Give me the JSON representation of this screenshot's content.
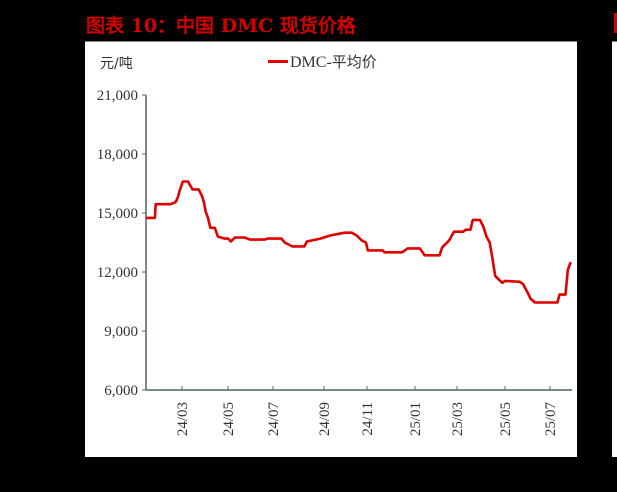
{
  "header": {
    "title": "图表 10：中国 DMC 现货价格"
  },
  "chart_data": {
    "type": "line",
    "title": "图表 10：中国 DMC 现货价格",
    "xlabel": "",
    "ylabel": "元/吨",
    "ylim": [
      6000,
      21000
    ],
    "yticks": [
      6000,
      9000,
      12000,
      15000,
      18000,
      21000
    ],
    "ytick_labels": [
      "6,000",
      "9,000",
      "12,000",
      "15,000",
      "18,000",
      "21,000"
    ],
    "xticks": [
      "24/03",
      "24/05",
      "24/07",
      "24/09",
      "24/11",
      "25/01",
      "25/03",
      "25/05",
      "25/07"
    ],
    "grid": false,
    "legend_position": "top-center",
    "series": [
      {
        "name": "DMC-平均价",
        "color": "#e00000",
        "points": [
          [
            "2024-01-14",
            14750
          ],
          [
            "2024-01-26",
            14750
          ],
          [
            "2024-01-27",
            15450
          ],
          [
            "2024-02-16",
            15450
          ],
          [
            "2024-02-23",
            15550
          ],
          [
            "2024-02-26",
            15800
          ],
          [
            "2024-02-28",
            16100
          ],
          [
            "2024-03-02",
            16600
          ],
          [
            "2024-03-09",
            16600
          ],
          [
            "2024-03-11",
            16450
          ],
          [
            "2024-03-15",
            16200
          ],
          [
            "2024-03-23",
            16200
          ],
          [
            "2024-03-27",
            15900
          ],
          [
            "2024-03-30",
            15550
          ],
          [
            "2024-04-02",
            15050
          ],
          [
            "2024-04-05",
            14750
          ],
          [
            "2024-04-08",
            14250
          ],
          [
            "2024-04-14",
            14250
          ],
          [
            "2024-04-18",
            13800
          ],
          [
            "2024-04-27",
            13700
          ],
          [
            "2024-05-01",
            13700
          ],
          [
            "2024-05-05",
            13550
          ],
          [
            "2024-05-10",
            13750
          ],
          [
            "2024-05-24",
            13750
          ],
          [
            "2024-05-31",
            13650
          ],
          [
            "2024-06-20",
            13650
          ],
          [
            "2024-06-24",
            13700
          ],
          [
            "2024-07-11",
            13700
          ],
          [
            "2024-07-15",
            13500
          ],
          [
            "2024-07-24",
            13300
          ],
          [
            "2024-08-08",
            13300
          ],
          [
            "2024-08-11",
            13550
          ],
          [
            "2024-08-27",
            13700
          ],
          [
            "2024-09-09",
            13850
          ],
          [
            "2024-09-30",
            14000
          ],
          [
            "2024-10-10",
            14000
          ],
          [
            "2024-10-17",
            13850
          ],
          [
            "2024-10-24",
            13600
          ],
          [
            "2024-10-30",
            13500
          ],
          [
            "2024-11-02",
            13100
          ],
          [
            "2024-11-21",
            13100
          ],
          [
            "2024-11-23",
            13000
          ],
          [
            "2024-12-15",
            13000
          ],
          [
            "2024-12-22",
            13200
          ],
          [
            "2025-01-08",
            13200
          ],
          [
            "2025-01-15",
            12850
          ],
          [
            "2025-02-06",
            12850
          ],
          [
            "2025-02-10",
            13250
          ],
          [
            "2025-02-20",
            13600
          ],
          [
            "2025-02-27",
            14050
          ],
          [
            "2025-03-09",
            14050
          ],
          [
            "2025-03-12",
            14150
          ],
          [
            "2025-03-18",
            14150
          ],
          [
            "2025-03-21",
            14650
          ],
          [
            "2025-03-30",
            14650
          ],
          [
            "2025-04-04",
            14300
          ],
          [
            "2025-04-08",
            13800
          ],
          [
            "2025-04-12",
            13500
          ],
          [
            "2025-04-15",
            12800
          ],
          [
            "2025-04-19",
            11800
          ],
          [
            "2025-04-24",
            11600
          ],
          [
            "2025-04-28",
            11450
          ],
          [
            "2025-05-01",
            11550
          ],
          [
            "2025-05-21",
            11500
          ],
          [
            "2025-05-25",
            11400
          ],
          [
            "2025-05-31",
            11000
          ],
          [
            "2025-06-05",
            10650
          ],
          [
            "2025-06-11",
            10450
          ],
          [
            "2025-07-11",
            10450
          ],
          [
            "2025-07-14",
            10850
          ],
          [
            "2025-07-22",
            10850
          ],
          [
            "2025-07-25",
            12100
          ],
          [
            "2025-07-29",
            12500
          ]
        ]
      }
    ]
  },
  "legend": {
    "label_latin": "DMC-",
    "label_cn": "平均价"
  },
  "axis": {
    "unit": "元/吨"
  }
}
